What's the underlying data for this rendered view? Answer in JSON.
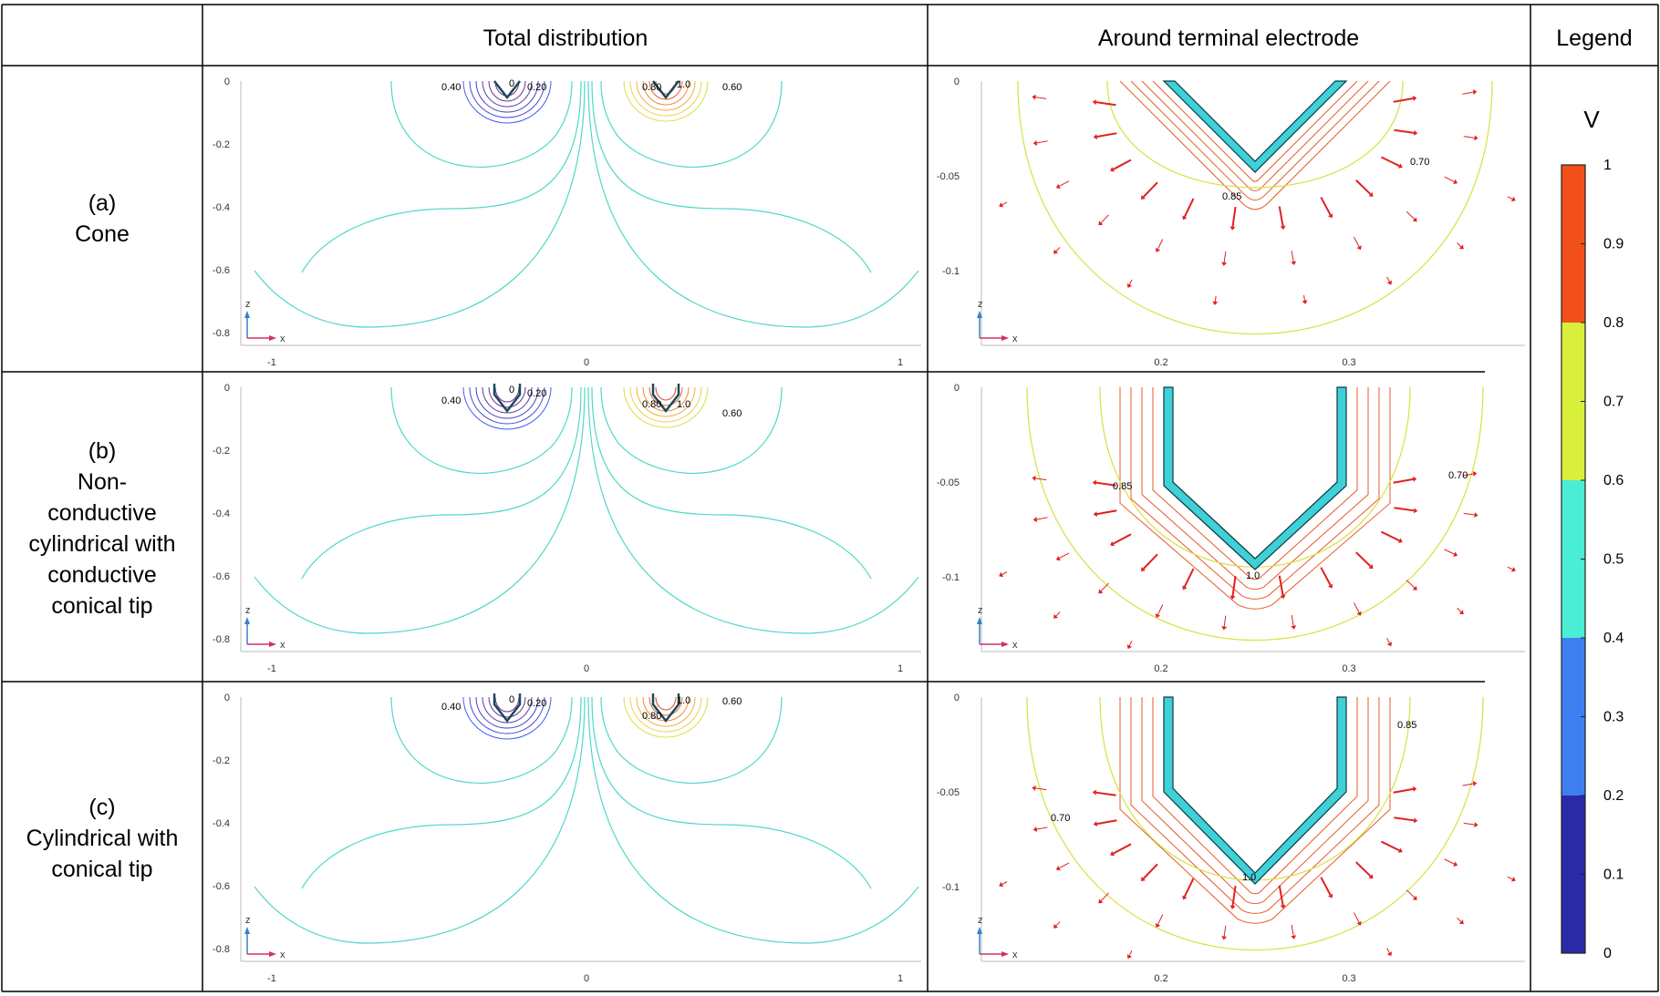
{
  "header": {
    "col_total": "Total distribution",
    "col_terminal": "Around terminal electrode",
    "col_legend": "Legend"
  },
  "rows": [
    {
      "id": "a",
      "label_lines": [
        "(a)",
        "Cone"
      ],
      "total": {
        "labels": {
          "l040": "0.40",
          "l0": "0",
          "l020": "0.20",
          "l080": "0.80",
          "l10": "1.0",
          "l060": "0.60"
        }
      },
      "terminal": {
        "labels": [
          "0.85",
          "0.70"
        ]
      }
    },
    {
      "id": "b",
      "label_lines": [
        "(b)",
        "Non-",
        "conductive",
        "cylindrical with",
        "conductive",
        "conical tip"
      ],
      "total": {
        "labels": {
          "l040": "0.40",
          "l0": "0",
          "l020": "0.20",
          "l080": "0.80",
          "l10": "1.0",
          "l060": "0.60"
        }
      },
      "terminal": {
        "labels": [
          "0.85",
          "0.70",
          "1.0"
        ]
      }
    },
    {
      "id": "c",
      "label_lines": [
        "(c)",
        "Cylindrical with",
        "conical tip"
      ],
      "total": {
        "labels": {
          "l040": "0.40",
          "l0": "0",
          "l020": "0.20",
          "l080": "0.80",
          "l10": "1.0",
          "l060": "0.60"
        }
      },
      "terminal": {
        "labels": [
          "0.85",
          "0.70",
          "1.0"
        ]
      }
    }
  ],
  "axes": {
    "total_y_ticks": [
      "0",
      "-0.2",
      "-0.4",
      "-0.6",
      "-0.8"
    ],
    "total_x_ticks": [
      "-1",
      "0",
      "1"
    ],
    "terminal_y_ticks": [
      "0",
      "-0.05",
      "-0.1"
    ],
    "terminal_x_ticks": [
      "0.2",
      "0.3"
    ],
    "triad_z": "z",
    "triad_x": "x"
  },
  "legend": {
    "unit": "V",
    "ticks": [
      "1",
      "0.9",
      "0.8",
      "0.7",
      "0.6",
      "0.5",
      "0.4",
      "0.3",
      "0.2",
      "0.1",
      "0"
    ],
    "colors": [
      "#2a2aa6",
      "#3d7ff0",
      "#4aeed6",
      "#d8f03c",
      "#f2501a"
    ]
  },
  "colors": {
    "low_contour": "#3a3af0",
    "near_half_contour": "#4fd8c8",
    "high_contour": "#e85a2a",
    "mid_high_contour": "#d8e040",
    "arrow": "#e02020",
    "electrode": "#3fd0d8"
  }
}
